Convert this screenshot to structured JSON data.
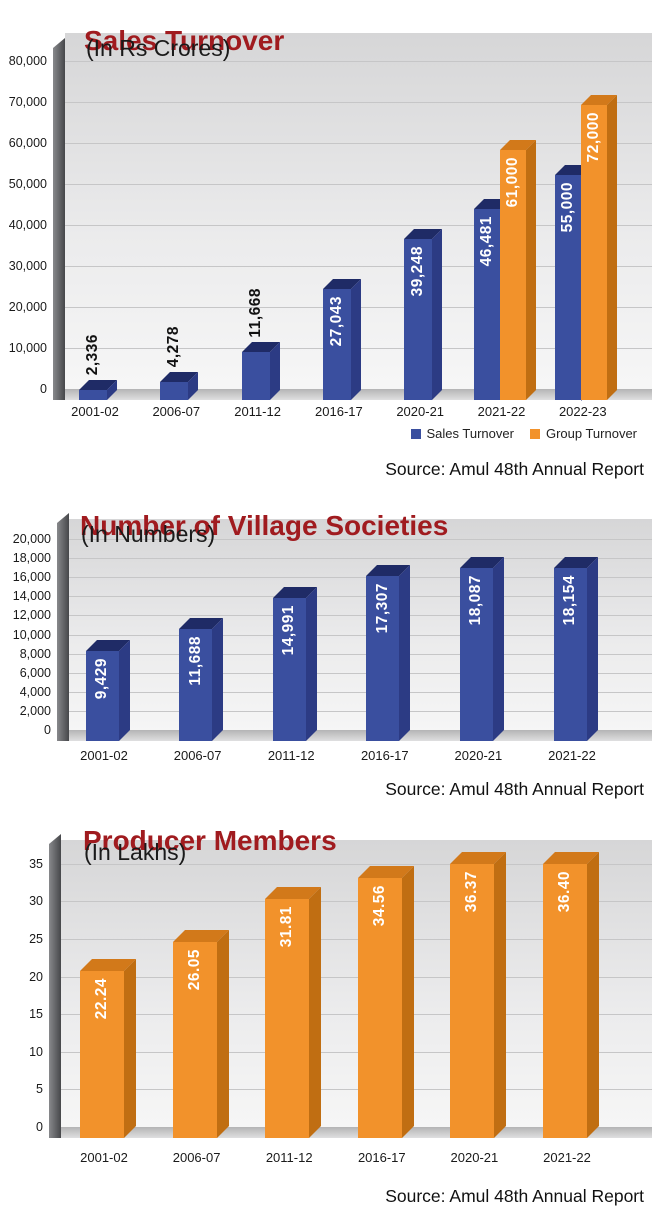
{
  "colors": {
    "title": "#A01B1F",
    "axis_text": "#1a1a1a",
    "grid": "#c6c6c7",
    "wall": "#46474a",
    "floor": "#c9c9ca",
    "blue": "#3A4F9F",
    "orange": "#F2922B"
  },
  "charts": [
    {
      "title": "Sales Turnover",
      "subtitle": "(In Rs Crores)",
      "source": "Source: Amul 48th Annual Report",
      "chart_data": {
        "type": "bar",
        "categories": [
          "2001-02",
          "2006-07",
          "2011-12",
          "2016-17",
          "2020-21",
          "2021-22",
          "2022-23"
        ],
        "series": [
          {
            "name": "Sales Turnover",
            "color": "#3A4F9F",
            "color_top": "#1F2B66",
            "color_side": "#2C3B84",
            "values": [
              2336,
              4278,
              11668,
              27043,
              39248,
              46481,
              55000
            ],
            "labels": [
              "2,336",
              "4,278",
              "11,668",
              "27,043",
              "39,248",
              "46,481",
              "55,000"
            ]
          },
          {
            "name": "Group Turnover",
            "color": "#F2922B",
            "color_top": "#D2791A",
            "color_side": "#C06E12",
            "values": [
              null,
              null,
              null,
              null,
              null,
              61000,
              72000
            ],
            "labels": [
              null,
              null,
              null,
              null,
              null,
              "61,000",
              "72,000"
            ]
          }
        ],
        "ylim": [
          0,
          80000
        ],
        "ytick_step": 10000,
        "grid": true,
        "legend_position": "bottom-right"
      }
    },
    {
      "title": "Number of Village Societies",
      "subtitle": "(In Numbers)",
      "source": "Source: Amul 48th Annual Report",
      "chart_data": {
        "type": "bar",
        "categories": [
          "2001-02",
          "2006-07",
          "2011-12",
          "2016-17",
          "2020-21",
          "2021-22"
        ],
        "series": [
          {
            "name": "Village Societies",
            "color": "#3A4F9F",
            "color_top": "#1F2B66",
            "color_side": "#2C3B84",
            "values": [
              9429,
              11688,
              14991,
              17307,
              18087,
              18154
            ],
            "labels": [
              "9,429",
              "11,688",
              "14,991",
              "17,307",
              "18,087",
              "18,154"
            ]
          }
        ],
        "ylim": [
          0,
          20000
        ],
        "ytick_step": 2000,
        "grid": true,
        "legend_position": "none"
      }
    },
    {
      "title": "Producer Members",
      "subtitle": "(In Lakhs)",
      "source": "Source: Amul 48th Annual Report",
      "chart_data": {
        "type": "bar",
        "categories": [
          "2001-02",
          "2006-07",
          "2011-12",
          "2016-17",
          "2020-21",
          "2021-22"
        ],
        "series": [
          {
            "name": "Producer Members",
            "color": "#F2922B",
            "color_top": "#D2791A",
            "color_side": "#C06E12",
            "values": [
              22.24,
              26.05,
              31.81,
              34.56,
              36.37,
              36.4
            ],
            "labels": [
              "22.24",
              "26.05",
              "31.81",
              "34.56",
              "36.37",
              "36.40"
            ]
          }
        ],
        "ylim": [
          0,
          35
        ],
        "ytick_step": 5,
        "grid": true,
        "legend_position": "none"
      }
    }
  ]
}
